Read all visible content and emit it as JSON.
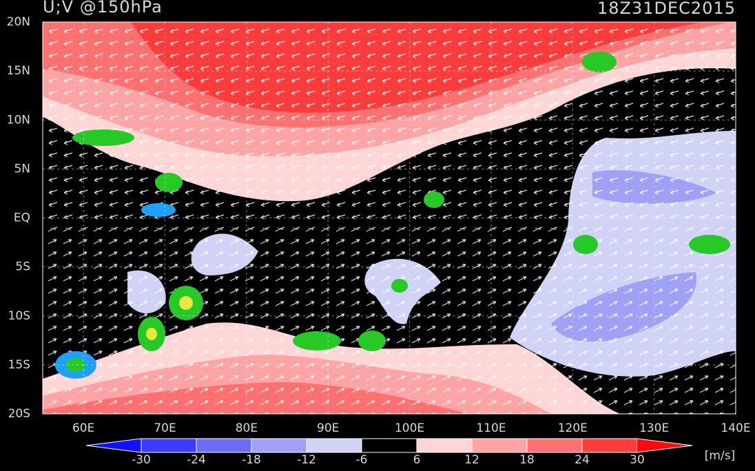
{
  "title": "U;V @150hPa",
  "timestamp": "18Z31DEC2015",
  "map": {
    "lonlim": [
      55,
      140
    ],
    "latlim": [
      -20,
      20
    ],
    "lon_ticks": [
      {
        "value": 60,
        "label": "60E"
      },
      {
        "value": 70,
        "label": "70E"
      },
      {
        "value": 80,
        "label": "80E"
      },
      {
        "value": 90,
        "label": "90E"
      },
      {
        "value": 100,
        "label": "100E"
      },
      {
        "value": 110,
        "label": "110E"
      },
      {
        "value": 120,
        "label": "120E"
      },
      {
        "value": 130,
        "label": "130E"
      },
      {
        "value": 140,
        "label": "140E"
      }
    ],
    "lat_ticks": [
      {
        "value": 20,
        "label": "20N"
      },
      {
        "value": 15,
        "label": "15N"
      },
      {
        "value": 10,
        "label": "10N"
      },
      {
        "value": 5,
        "label": "5N"
      },
      {
        "value": 0,
        "label": "EQ"
      },
      {
        "value": -5,
        "label": "5S"
      },
      {
        "value": -10,
        "label": "10S"
      },
      {
        "value": -15,
        "label": "15S"
      },
      {
        "value": -20,
        "label": "20S"
      }
    ]
  },
  "colorbar": {
    "levels": [
      -30,
      -24,
      -18,
      -12,
      -6,
      6,
      12,
      18,
      24,
      30
    ],
    "colors": [
      "#1010ff",
      "#3c3cff",
      "#6c6cf4",
      "#a0a0f6",
      "#d0d2f6",
      "#000000",
      "#ffd6d6",
      "#ffa4a4",
      "#ff7070",
      "#ff3c3c",
      "#ff0a0a"
    ],
    "unit": "[m/s]"
  }
}
